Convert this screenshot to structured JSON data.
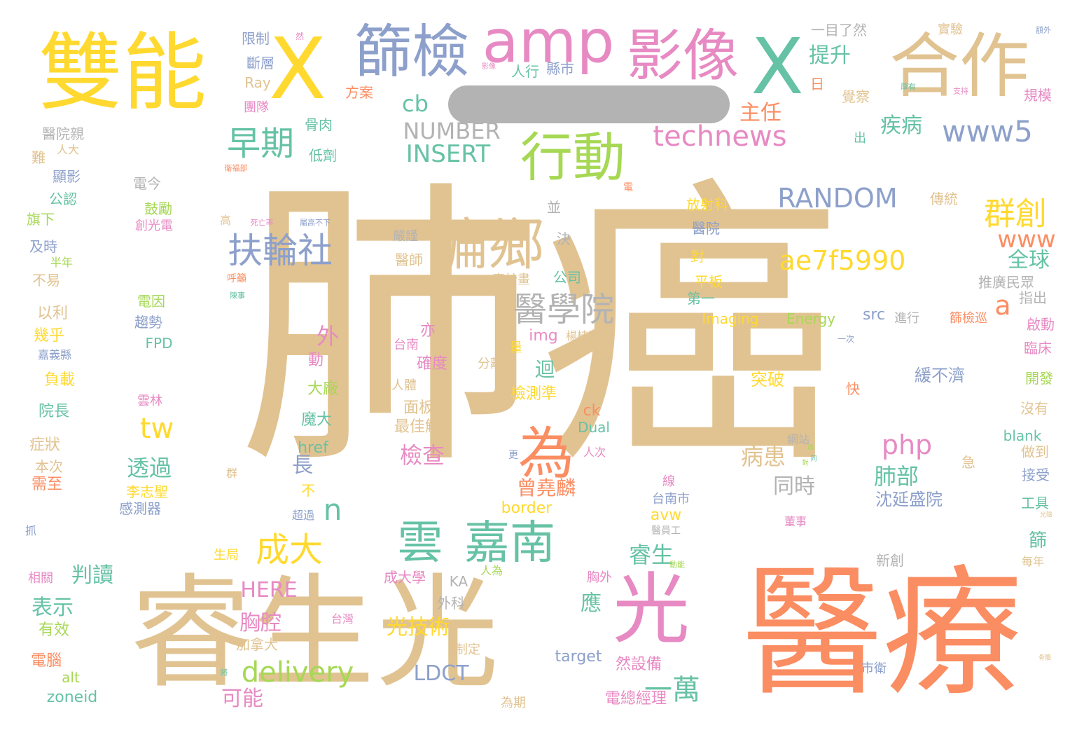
{
  "colors": {
    "tan": "#e1c391",
    "orange": "#fb8d62",
    "yellow": "#ffd92f",
    "green": "#66c2a5",
    "blue": "#8da0cb",
    "pink": "#e78ac3",
    "lime": "#a6d854",
    "gray": "#b3b3b3"
  },
  "words": [
    {
      "text": "肺癌",
      "color": "tan"
    },
    {
      "text": "醫療",
      "color": "orange"
    },
    {
      "text": "光",
      "color": "tan"
    },
    {
      "text": "睿生",
      "color": "tan"
    },
    {
      "text": "雙能",
      "color": "yellow"
    },
    {
      "text": "X",
      "color": "yellow"
    },
    {
      "text": "X",
      "color": "green"
    },
    {
      "text": "篩檢",
      "color": "blue"
    },
    {
      "text": "amp",
      "color": "pink"
    },
    {
      "text": "影像",
      "color": "pink"
    },
    {
      "text": "合作",
      "color": "tan"
    },
    {
      "text": "光",
      "color": "pink"
    },
    {
      "text": "偏鄉",
      "color": "tan"
    },
    {
      "text": "行動",
      "color": "lime"
    },
    {
      "text": "為",
      "color": "orange"
    },
    {
      "text": "雲",
      "color": "green"
    },
    {
      "text": "嘉南",
      "color": "green"
    },
    {
      "text": "醫學院",
      "color": "gray"
    },
    {
      "text": "扶輪社",
      "color": "blue"
    },
    {
      "text": "早期",
      "color": "green"
    },
    {
      "text": "www5",
      "color": "blue"
    },
    {
      "text": "technews",
      "color": "pink"
    },
    {
      "text": "群創",
      "color": "yellow"
    },
    {
      "text": "ae7f5990",
      "color": "yellow"
    },
    {
      "text": "RANDOM",
      "color": "blue"
    },
    {
      "text": "INSERT",
      "color": "green"
    },
    {
      "text": "NUMBER",
      "color": "gray"
    },
    {
      "text": "成大",
      "color": "yellow"
    },
    {
      "text": "delivery",
      "color": "lime"
    },
    {
      "text": "一萬",
      "color": "green"
    },
    {
      "text": "php",
      "color": "pink"
    },
    {
      "text": "tw",
      "color": "yellow"
    },
    {
      "text": "www",
      "color": "orange"
    },
    {
      "text": "cb",
      "color": "green"
    },
    {
      "text": "提升",
      "color": "green"
    },
    {
      "text": "主任",
      "color": "orange"
    },
    {
      "text": "疾病",
      "color": "green"
    },
    {
      "text": "全球",
      "color": "green"
    },
    {
      "text": "a",
      "color": "orange"
    },
    {
      "text": "n",
      "color": "green"
    },
    {
      "text": "外",
      "color": "pink"
    },
    {
      "text": "透過",
      "color": "green"
    },
    {
      "text": "檢查",
      "color": "pink"
    },
    {
      "text": "肺部",
      "color": "green"
    },
    {
      "text": "病患",
      "color": "tan"
    },
    {
      "text": "睿生",
      "color": "green"
    },
    {
      "text": "同時",
      "color": "gray"
    },
    {
      "text": "判讀",
      "color": "green"
    },
    {
      "text": "HERE",
      "color": "pink"
    },
    {
      "text": "LDCT",
      "color": "blue"
    },
    {
      "text": "光技術",
      "color": "yellow"
    },
    {
      "text": "胸腔",
      "color": "pink"
    },
    {
      "text": "表示",
      "color": "green"
    },
    {
      "text": "可能",
      "color": "pink"
    },
    {
      "text": "曾堯麟",
      "color": "orange"
    },
    {
      "text": "迴",
      "color": "green"
    },
    {
      "text": "沈延盛院",
      "color": "blue"
    },
    {
      "text": "長",
      "color": "blue"
    },
    {
      "text": "應",
      "color": "green"
    },
    {
      "text": "img",
      "color": "pink"
    },
    {
      "text": "src",
      "color": "blue"
    },
    {
      "text": "突破",
      "color": "yellow"
    },
    {
      "text": "緩不濟",
      "color": "blue"
    },
    {
      "text": "人行",
      "color": "green"
    },
    {
      "text": "縣市",
      "color": "blue"
    },
    {
      "text": "方案",
      "color": "orange"
    },
    {
      "text": "低劑",
      "color": "green"
    },
    {
      "text": "骨肉",
      "color": "green"
    },
    {
      "text": "限制",
      "color": "blue"
    },
    {
      "text": "斷層",
      "color": "blue"
    },
    {
      "text": "Ray",
      "color": "tan"
    },
    {
      "text": "團隊",
      "color": "pink"
    },
    {
      "text": "醫院親",
      "color": "gray"
    },
    {
      "text": "人大",
      "color": "tan"
    },
    {
      "text": "難",
      "color": "tan"
    },
    {
      "text": "顯影",
      "color": "blue"
    },
    {
      "text": "公認",
      "color": "green"
    },
    {
      "text": "旗下",
      "color": "lime"
    },
    {
      "text": "及時",
      "color": "blue"
    },
    {
      "text": "半年",
      "color": "lime"
    },
    {
      "text": "不易",
      "color": "tan"
    },
    {
      "text": "以利",
      "color": "tan"
    },
    {
      "text": "幾乎",
      "color": "yellow"
    },
    {
      "text": "嘉義縣",
      "color": "blue"
    },
    {
      "text": "負載",
      "color": "yellow"
    },
    {
      "text": "院長",
      "color": "green"
    },
    {
      "text": "症狀",
      "color": "tan"
    },
    {
      "text": "本次",
      "color": "tan"
    },
    {
      "text": "需至",
      "color": "orange"
    },
    {
      "text": "抓",
      "color": "blue"
    },
    {
      "text": "相關",
      "color": "pink"
    },
    {
      "text": "有效",
      "color": "lime"
    },
    {
      "text": "電腦",
      "color": "orange"
    },
    {
      "text": "alt",
      "color": "lime"
    },
    {
      "text": "zoneid",
      "color": "green"
    },
    {
      "text": "電今",
      "color": "gray"
    },
    {
      "text": "鼓勵",
      "color": "lime"
    },
    {
      "text": "創光電",
      "color": "pink"
    },
    {
      "text": "電因",
      "color": "lime"
    },
    {
      "text": "趨勢",
      "color": "blue"
    },
    {
      "text": "FPD",
      "color": "green"
    },
    {
      "text": "雲林",
      "color": "pink"
    },
    {
      "text": "李志聖",
      "color": "yellow"
    },
    {
      "text": "感測器",
      "color": "blue"
    },
    {
      "text": "群",
      "color": "tan"
    },
    {
      "text": "生局",
      "color": "yellow"
    },
    {
      "text": "加拿大",
      "color": "tan"
    },
    {
      "text": "台灣",
      "color": "pink"
    },
    {
      "text": "外科",
      "color": "gray"
    },
    {
      "text": "制定",
      "color": "tan"
    },
    {
      "text": "KA",
      "color": "gray"
    },
    {
      "text": "人為",
      "color": "lime"
    },
    {
      "text": "成大學",
      "color": "pink"
    },
    {
      "text": "href",
      "color": "green"
    },
    {
      "text": "超過",
      "color": "blue"
    },
    {
      "text": "不",
      "color": "yellow"
    },
    {
      "text": "魔大",
      "color": "green"
    },
    {
      "text": "大廠",
      "color": "lime"
    },
    {
      "text": "動",
      "color": "pink"
    },
    {
      "text": "亦",
      "color": "pink"
    },
    {
      "text": "台南",
      "color": "pink"
    },
    {
      "text": "確度",
      "color": "pink"
    },
    {
      "text": "人體",
      "color": "tan"
    },
    {
      "text": "面板",
      "color": "tan"
    },
    {
      "text": "最佳解",
      "color": "tan"
    },
    {
      "text": "分離",
      "color": "tan"
    },
    {
      "text": "量",
      "color": "yellow"
    },
    {
      "text": "檢測準",
      "color": "yellow"
    },
    {
      "text": "border",
      "color": "yellow"
    },
    {
      "text": "ck",
      "color": "orange"
    },
    {
      "text": "Dual",
      "color": "green"
    },
    {
      "text": "target",
      "color": "blue"
    },
    {
      "text": "然設備",
      "color": "pink"
    },
    {
      "text": "電總經理",
      "color": "pink"
    },
    {
      "text": "胸外",
      "color": "pink"
    },
    {
      "text": "為期",
      "color": "tan"
    },
    {
      "text": "醫師",
      "color": "tan"
    },
    {
      "text": "嚴謹",
      "color": "gray"
    },
    {
      "text": "公司",
      "color": "green"
    },
    {
      "text": "車計畫",
      "color": "tan"
    },
    {
      "text": "並",
      "color": "gray"
    },
    {
      "text": "決",
      "color": "gray"
    },
    {
      "text": "楊桂祥",
      "color": "tan"
    },
    {
      "text": "人次",
      "color": "pink"
    },
    {
      "text": "更",
      "color": "blue"
    },
    {
      "text": "線",
      "color": "pink"
    },
    {
      "text": "台南市",
      "color": "blue"
    },
    {
      "text": "avw",
      "color": "yellow"
    },
    {
      "text": "醫員工",
      "color": "gray"
    },
    {
      "text": "放射科",
      "color": "yellow"
    },
    {
      "text": "醫院",
      "color": "blue"
    },
    {
      "text": "對",
      "color": "yellow"
    },
    {
      "text": "平板",
      "color": "yellow"
    },
    {
      "text": "第一",
      "color": "green"
    },
    {
      "text": "Imaging",
      "color": "yellow"
    },
    {
      "text": "Energy",
      "color": "lime"
    },
    {
      "text": "進行",
      "color": "gray"
    },
    {
      "text": "篩檢巡",
      "color": "orange"
    },
    {
      "text": "一次",
      "color": "blue"
    },
    {
      "text": "網站",
      "color": "gray"
    },
    {
      "text": "急",
      "color": "tan"
    },
    {
      "text": "董事",
      "color": "pink"
    },
    {
      "text": "新創",
      "color": "gray"
    },
    {
      "text": "市衛",
      "color": "blue"
    },
    {
      "text": "快",
      "color": "orange"
    },
    {
      "text": "一目了然",
      "color": "gray"
    },
    {
      "text": "日",
      "color": "orange"
    },
    {
      "text": "出",
      "color": "green"
    },
    {
      "text": "覺察",
      "color": "tan"
    },
    {
      "text": "推廣民眾",
      "color": "gray"
    },
    {
      "text": "傳統",
      "color": "tan"
    },
    {
      "text": "實驗",
      "color": "tan"
    },
    {
      "text": "規模",
      "color": "pink"
    },
    {
      "text": "指出",
      "color": "gray"
    },
    {
      "text": "啟動",
      "color": "pink"
    },
    {
      "text": "臨床",
      "color": "pink"
    },
    {
      "text": "開發",
      "color": "lime"
    },
    {
      "text": "沒有",
      "color": "tan"
    },
    {
      "text": "blank",
      "color": "green"
    },
    {
      "text": "做到",
      "color": "tan"
    },
    {
      "text": "接受",
      "color": "blue"
    },
    {
      "text": "工具",
      "color": "green"
    },
    {
      "text": "篩",
      "color": "green"
    },
    {
      "text": "每年",
      "color": "tan"
    },
    {
      "text": "然",
      "color": "pink"
    },
    {
      "text": "死亡率",
      "color": "pink"
    },
    {
      "text": "屬高不下",
      "color": "blue"
    },
    {
      "text": "呼籲",
      "color": "orange"
    },
    {
      "text": "陳事",
      "color": "green"
    },
    {
      "text": "電",
      "color": "orange"
    },
    {
      "text": "高",
      "color": "tan"
    },
    {
      "text": "衛福部",
      "color": "orange"
    },
    {
      "text": "影像",
      "color": "pink"
    },
    {
      "text": "厚有",
      "color": "green"
    },
    {
      "text": "支持",
      "color": "pink"
    },
    {
      "text": "額外",
      "color": "blue"
    },
    {
      "text": "光陰",
      "color": "tan"
    },
    {
      "text": "骨骼",
      "color": "tan"
    },
    {
      "text": "將",
      "color": "green"
    },
    {
      "text": "動能",
      "color": "lime"
    },
    {
      "text": "對",
      "color": "lime"
    },
    {
      "text": "改",
      "color": "lime"
    },
    {
      "text": "同",
      "color": "green"
    }
  ]
}
